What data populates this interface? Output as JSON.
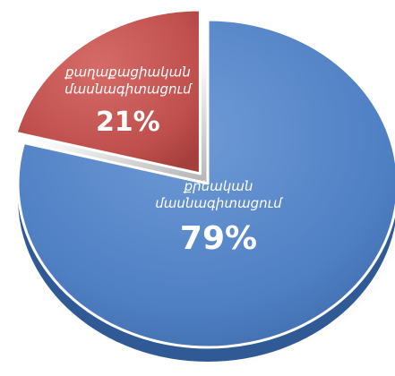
{
  "chart_data": {
    "type": "pie",
    "title": "",
    "slices": [
      {
        "label_lines": [
          "քրեական",
          "մասնագիտացում"
        ],
        "percent_text": "79%",
        "value": 79,
        "color": "#4f80c4",
        "side_color": "#2f5a96",
        "exploded": false
      },
      {
        "label_lines": [
          "քաղաքացիական",
          "մասնագիտացում"
        ],
        "percent_text": "21%",
        "value": 21,
        "color": "#c0504d",
        "side_color": "#8e2e2c",
        "exploded": true
      }
    ]
  }
}
